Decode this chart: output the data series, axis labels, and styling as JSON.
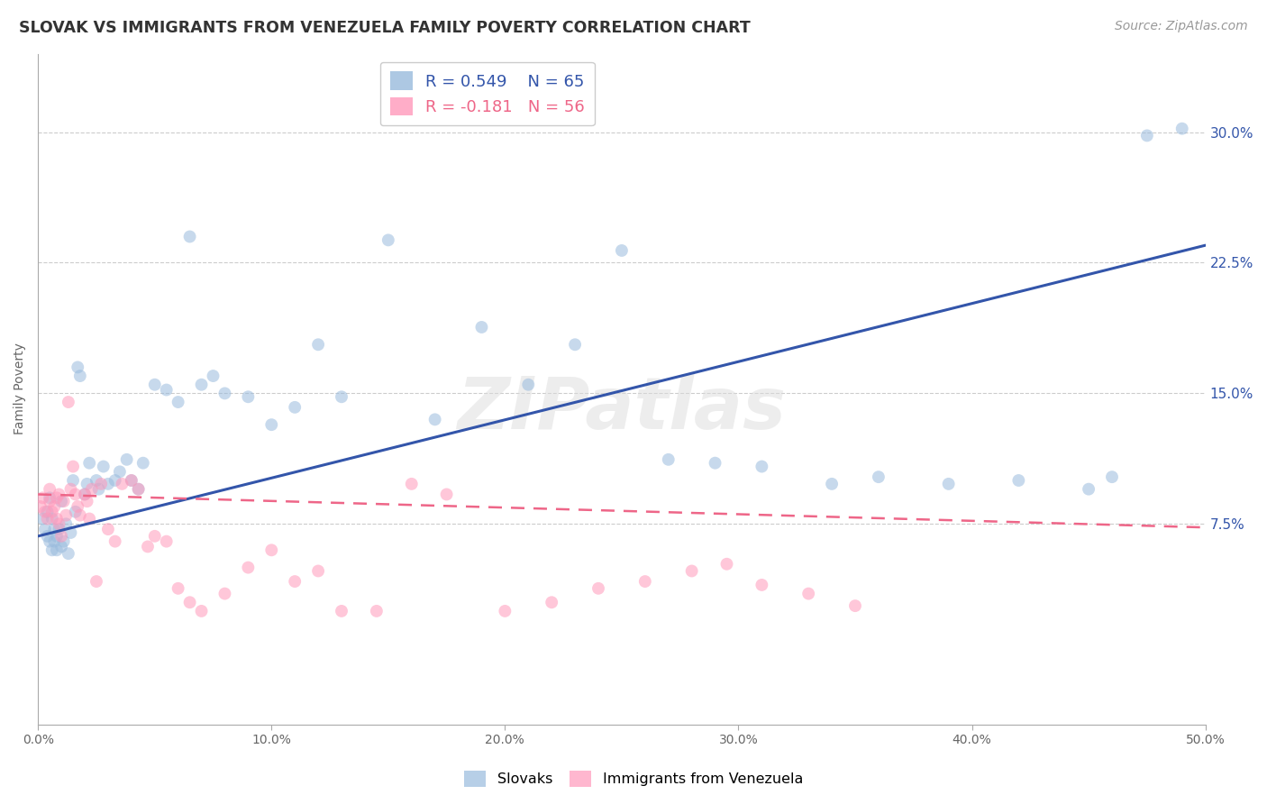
{
  "title": "SLOVAK VS IMMIGRANTS FROM VENEZUELA FAMILY POVERTY CORRELATION CHART",
  "source": "Source: ZipAtlas.com",
  "ylabel": "Family Poverty",
  "xlim": [
    0.0,
    0.5
  ],
  "ylim": [
    -0.04,
    0.345
  ],
  "xticks": [
    0.0,
    0.1,
    0.2,
    0.3,
    0.4,
    0.5
  ],
  "yticks": [
    0.075,
    0.15,
    0.225,
    0.3
  ],
  "ytick_labels": [
    "7.5%",
    "15.0%",
    "22.5%",
    "30.0%"
  ],
  "xtick_labels": [
    "0.0%",
    "10.0%",
    "20.0%",
    "30.0%",
    "40.0%",
    "50.0%"
  ],
  "blue_color": "#99BBDD",
  "pink_color": "#FF99BB",
  "blue_line_color": "#3355AA",
  "pink_line_color": "#EE6688",
  "watermark_text": "ZIPatlas",
  "legend_R_blue": "R = 0.549",
  "legend_N_blue": "N = 65",
  "legend_R_pink": "R = -0.181",
  "legend_N_pink": "N = 56",
  "blue_line_x0": 0.0,
  "blue_line_y0": 0.068,
  "blue_line_x1": 0.5,
  "blue_line_y1": 0.235,
  "pink_line_x0": 0.0,
  "pink_line_y0": 0.092,
  "pink_line_x1": 0.5,
  "pink_line_y1": 0.073,
  "slovaks_x": [
    0.002,
    0.003,
    0.004,
    0.004,
    0.005,
    0.005,
    0.006,
    0.006,
    0.007,
    0.007,
    0.008,
    0.008,
    0.009,
    0.01,
    0.01,
    0.011,
    0.012,
    0.013,
    0.014,
    0.015,
    0.016,
    0.017,
    0.018,
    0.02,
    0.021,
    0.022,
    0.025,
    0.026,
    0.028,
    0.03,
    0.033,
    0.035,
    0.038,
    0.04,
    0.043,
    0.045,
    0.05,
    0.055,
    0.06,
    0.065,
    0.07,
    0.075,
    0.08,
    0.09,
    0.1,
    0.11,
    0.12,
    0.13,
    0.15,
    0.17,
    0.19,
    0.21,
    0.23,
    0.25,
    0.27,
    0.29,
    0.31,
    0.34,
    0.36,
    0.39,
    0.42,
    0.45,
    0.46,
    0.475,
    0.49
  ],
  "slovaks_y": [
    0.078,
    0.072,
    0.082,
    0.068,
    0.09,
    0.065,
    0.078,
    0.06,
    0.072,
    0.065,
    0.06,
    0.068,
    0.072,
    0.062,
    0.088,
    0.065,
    0.075,
    0.058,
    0.07,
    0.1,
    0.082,
    0.165,
    0.16,
    0.092,
    0.098,
    0.11,
    0.1,
    0.095,
    0.108,
    0.098,
    0.1,
    0.105,
    0.112,
    0.1,
    0.095,
    0.11,
    0.155,
    0.152,
    0.145,
    0.24,
    0.155,
    0.16,
    0.15,
    0.148,
    0.132,
    0.142,
    0.178,
    0.148,
    0.238,
    0.135,
    0.188,
    0.155,
    0.178,
    0.232,
    0.112,
    0.11,
    0.108,
    0.098,
    0.102,
    0.098,
    0.1,
    0.095,
    0.102,
    0.298,
    0.302
  ],
  "venezuela_x": [
    0.001,
    0.002,
    0.003,
    0.004,
    0.005,
    0.005,
    0.006,
    0.007,
    0.008,
    0.008,
    0.009,
    0.009,
    0.01,
    0.011,
    0.012,
    0.013,
    0.014,
    0.015,
    0.016,
    0.017,
    0.018,
    0.02,
    0.021,
    0.022,
    0.023,
    0.025,
    0.027,
    0.03,
    0.033,
    0.036,
    0.04,
    0.043,
    0.047,
    0.05,
    0.055,
    0.06,
    0.065,
    0.07,
    0.08,
    0.09,
    0.1,
    0.11,
    0.12,
    0.13,
    0.145,
    0.16,
    0.175,
    0.2,
    0.22,
    0.24,
    0.26,
    0.28,
    0.295,
    0.31,
    0.33,
    0.35
  ],
  "venezuela_y": [
    0.085,
    0.09,
    0.082,
    0.078,
    0.088,
    0.095,
    0.082,
    0.085,
    0.09,
    0.078,
    0.092,
    0.075,
    0.068,
    0.088,
    0.08,
    0.145,
    0.095,
    0.108,
    0.092,
    0.085,
    0.08,
    0.092,
    0.088,
    0.078,
    0.095,
    0.042,
    0.098,
    0.072,
    0.065,
    0.098,
    0.1,
    0.095,
    0.062,
    0.068,
    0.065,
    0.038,
    0.03,
    0.025,
    0.035,
    0.05,
    0.06,
    0.042,
    0.048,
    0.025,
    0.025,
    0.098,
    0.092,
    0.025,
    0.03,
    0.038,
    0.042,
    0.048,
    0.052,
    0.04,
    0.035,
    0.028
  ],
  "background_color": "#FFFFFF",
  "grid_color": "#CCCCCC",
  "title_fontsize": 12.5,
  "axis_label_fontsize": 10,
  "tick_fontsize": 10,
  "legend_fontsize": 13,
  "source_fontsize": 10
}
